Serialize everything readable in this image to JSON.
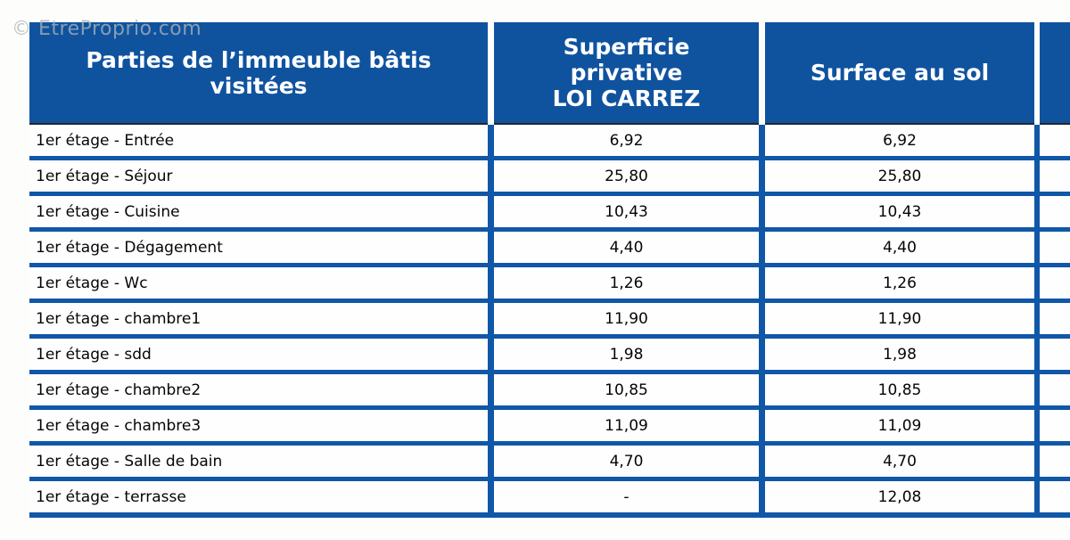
{
  "watermark": {
    "text": "© EtreProprio.com"
  },
  "colors": {
    "header_blue": "#0f539f",
    "grid_line_blue": "#1057a8",
    "header_bottom_dark": "#23262e",
    "watermark_gray": "#aab2b8"
  },
  "table": {
    "headers": {
      "parties": "Parties de l’immeuble bâtis\nvisitées",
      "carrez": "Superficie\nprivative\nLOI CARREZ",
      "floor": "Surface au sol",
      "extra": ""
    },
    "rows": [
      {
        "label": "1er étage - Entrée",
        "carrez": "6,92",
        "floor": "6,92"
      },
      {
        "label": "1er étage - Séjour",
        "carrez": "25,80",
        "floor": "25,80"
      },
      {
        "label": "1er étage - Cuisine",
        "carrez": "10,43",
        "floor": "10,43"
      },
      {
        "label": "1er étage - Dégagement",
        "carrez": "4,40",
        "floor": "4,40"
      },
      {
        "label": "1er étage - Wc",
        "carrez": "1,26",
        "floor": "1,26"
      },
      {
        "label": "1er étage - chambre1",
        "carrez": "11,90",
        "floor": "11,90"
      },
      {
        "label": "1er étage - sdd",
        "carrez": "1,98",
        "floor": "1,98"
      },
      {
        "label": "1er étage - chambre2",
        "carrez": "10,85",
        "floor": "10,85"
      },
      {
        "label": "1er étage - chambre3",
        "carrez": "11,09",
        "floor": "11,09"
      },
      {
        "label": "1er étage - Salle de bain",
        "carrez": "4,70",
        "floor": "4,70"
      },
      {
        "label": "1er étage - terrasse",
        "carrez": "-",
        "floor": "12,08"
      }
    ]
  }
}
